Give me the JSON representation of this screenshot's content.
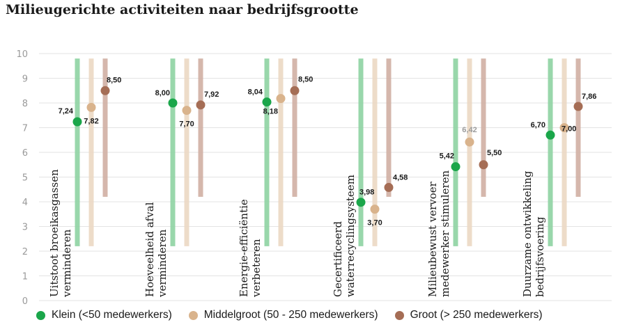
{
  "title": "Milieugerichte activiteiten naar bedrijfsgrootte",
  "chart_data": {
    "type": "scatter",
    "title": "Milieugerichte activiteiten naar bedrijfsgrootte",
    "ylim": [
      0,
      10
    ],
    "yticks": [
      "0",
      "1",
      "2",
      "3",
      "4",
      "5",
      "6",
      "7",
      "8",
      "9",
      "10"
    ],
    "grid": true,
    "legend_position": "bottom",
    "categories": [
      "Uitstoot broeikasgassen verminderen",
      "Hoeveelheid afval verminderen",
      "Energie-efficiëntie verbeteren",
      "Gecertificeerd waterrecyclingsysteem",
      "Milieubewust vervoer medewerker stimuleren",
      "Duurzame ontwikkeling bedrijfsvoering"
    ],
    "category_lines": [
      [
        "Uitstoot broeikasgassen",
        "verminderen"
      ],
      [
        "Hoeveelheid afval",
        "verminderen"
      ],
      [
        "Energie-efficiëntie",
        "verbeteren"
      ],
      [
        "Gecertificeerd",
        "waterrecyclingsysteem"
      ],
      [
        "Milieubewust vervoer",
        "medewerker stimuleren"
      ],
      [
        "Duurzame ontwikkeling",
        "bedrijfsvoering"
      ]
    ],
    "series": [
      {
        "name": "Klein (<50 medewerkers)",
        "color": "#1aa64a",
        "bar_color": "#8fd3a3",
        "values": [
          7.24,
          8.0,
          8.04,
          3.98,
          5.42,
          6.7
        ],
        "labels": [
          "7,24",
          "8,00",
          "8,04",
          "3,98",
          "5,42",
          "6,70"
        ],
        "bar_range": [
          2.2,
          9.8
        ]
      },
      {
        "name": "Middelgroot (50 - 250 medewerkers)",
        "color": "#d9b38c",
        "bar_color": "#ecd9c4",
        "values": [
          7.82,
          7.7,
          8.18,
          3.7,
          6.42,
          7.0
        ],
        "labels": [
          "7,82",
          "7,70",
          "8,18",
          "3,70",
          "6,42",
          "7,00"
        ],
        "bar_range": [
          2.2,
          9.8
        ]
      },
      {
        "name": "Groot (> 250 medewerkers)",
        "color": "#a56d55",
        "bar_color": "#d1b0a4",
        "values": [
          8.5,
          7.92,
          8.5,
          4.58,
          5.5,
          7.86
        ],
        "labels": [
          "8,50",
          "7,92",
          "8,50",
          "4,58",
          "5,50",
          "7,86"
        ],
        "bar_range": [
          4.2,
          9.8
        ]
      }
    ]
  }
}
